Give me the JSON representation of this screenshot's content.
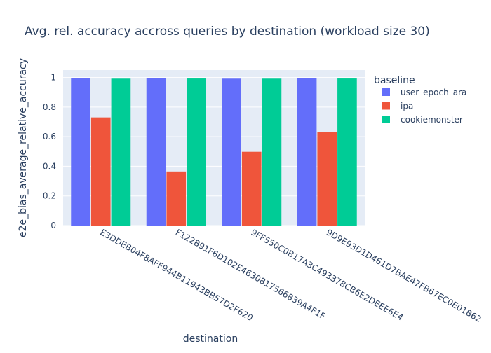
{
  "chart_data": {
    "type": "bar",
    "title": "Avg. rel. accuracy accross queries by destination (workload size 30)",
    "xlabel": "destination",
    "ylabel": "e2e_bias_average_relative_accuracy",
    "ylim": [
      0,
      1.05
    ],
    "yticks": [
      0,
      0.2,
      0.4,
      0.6,
      0.8,
      1
    ],
    "ytick_labels": [
      "0",
      "0.2",
      "0.4",
      "0.6",
      "0.8",
      "1"
    ],
    "grid": true,
    "legend": {
      "title": "baseline",
      "placement": "top-right outside plot"
    },
    "categories": [
      "E3DDEB04F8AFF944B11943BB57D2F620",
      "F122B91F6D102E4630817566839A4F1F",
      "9FF550C0B17A3C493378CB6E2DEEE6E4",
      "9D9E93D1D461D7BAE47FB67EC0E01B62"
    ],
    "series": [
      {
        "name": "user_epoch_ara",
        "color": "#636efa",
        "values": [
          0.995,
          0.997,
          0.992,
          0.995
        ]
      },
      {
        "name": "ipa",
        "color": "#ef553b",
        "values": [
          0.73,
          0.365,
          0.498,
          0.63
        ]
      },
      {
        "name": "cookiemonster",
        "color": "#00cc96",
        "values": [
          0.992,
          0.993,
          0.992,
          0.993
        ]
      }
    ]
  }
}
